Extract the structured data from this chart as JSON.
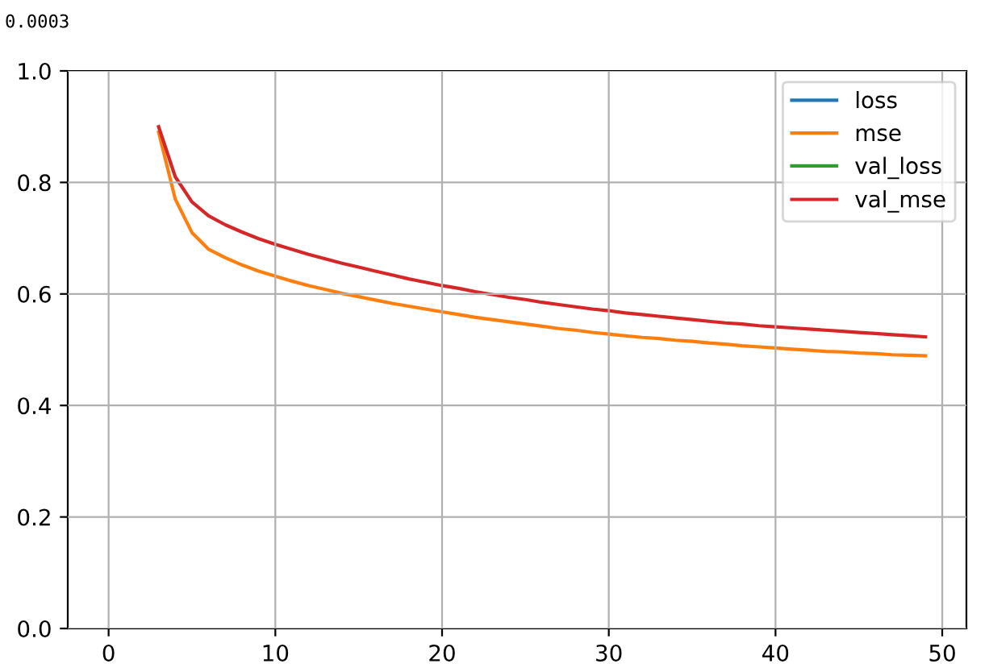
{
  "chart_data": {
    "type": "line",
    "x": [
      3,
      4,
      5,
      6,
      7,
      8,
      9,
      10,
      11,
      12,
      13,
      14,
      15,
      16,
      17,
      18,
      19,
      20,
      21,
      22,
      23,
      24,
      25,
      26,
      27,
      28,
      29,
      30,
      31,
      32,
      33,
      34,
      35,
      36,
      37,
      38,
      39,
      40,
      41,
      42,
      43,
      44,
      45,
      46,
      47,
      48,
      49
    ],
    "series": [
      {
        "name": "loss",
        "color": "#1f77b4",
        "values": [
          null,
          null,
          null,
          null,
          null,
          null,
          null,
          null,
          null,
          null,
          null,
          null,
          null,
          null,
          null,
          null,
          null,
          null,
          null,
          null,
          null,
          null,
          null,
          null,
          null,
          null,
          null,
          null,
          null,
          null,
          null,
          null,
          null,
          null,
          null,
          null,
          null,
          null,
          null,
          null,
          null,
          null,
          null,
          null,
          null,
          null,
          null
        ]
      },
      {
        "name": "mse",
        "color": "#ff7f0e",
        "values": [
          0.89,
          0.77,
          0.71,
          0.68,
          0.665,
          0.652,
          0.641,
          0.632,
          0.623,
          0.615,
          0.608,
          0.601,
          0.595,
          0.589,
          0.583,
          0.578,
          0.573,
          0.568,
          0.563,
          0.558,
          0.554,
          0.55,
          0.546,
          0.542,
          0.538,
          0.535,
          0.531,
          0.528,
          0.525,
          0.522,
          0.52,
          0.517,
          0.515,
          0.512,
          0.51,
          0.507,
          0.505,
          0.503,
          0.501,
          0.499,
          0.497,
          0.496,
          0.494,
          0.493,
          0.491,
          0.49,
          0.489
        ]
      },
      {
        "name": "val_loss",
        "color": "#2ca02c",
        "values": [
          null,
          null,
          null,
          null,
          null,
          null,
          null,
          null,
          null,
          null,
          null,
          null,
          null,
          null,
          null,
          null,
          null,
          null,
          null,
          null,
          null,
          null,
          null,
          null,
          null,
          null,
          null,
          null,
          null,
          null,
          null,
          null,
          null,
          null,
          null,
          null,
          null,
          null,
          null,
          null,
          null,
          null,
          null,
          null,
          null,
          null,
          null
        ]
      },
      {
        "name": "val_mse",
        "color": "#d62728",
        "values": [
          0.9,
          0.81,
          0.765,
          0.74,
          0.724,
          0.711,
          0.699,
          0.689,
          0.68,
          0.671,
          0.663,
          0.655,
          0.648,
          0.641,
          0.634,
          0.627,
          0.621,
          0.615,
          0.61,
          0.604,
          0.599,
          0.594,
          0.59,
          0.585,
          0.581,
          0.577,
          0.573,
          0.57,
          0.566,
          0.563,
          0.56,
          0.557,
          0.554,
          0.551,
          0.548,
          0.546,
          0.543,
          0.541,
          0.539,
          0.537,
          0.535,
          0.533,
          0.531,
          0.529,
          0.527,
          0.525,
          0.523
        ]
      }
    ],
    "xlim": [
      -2.45,
      51.45
    ],
    "xticks": [
      0,
      10,
      20,
      30,
      40,
      50
    ],
    "ylim": [
      0,
      1
    ],
    "yticks": [
      {
        "value": 0,
        "label": "0.0"
      },
      0.2,
      0.4,
      0.6,
      0.8,
      {
        "value": 1,
        "label": "1.0"
      }
    ],
    "grid": true,
    "legend": "top right",
    "marker": "none",
    "line_style": "solid",
    "annotations": [
      "0.0003"
    ]
  }
}
